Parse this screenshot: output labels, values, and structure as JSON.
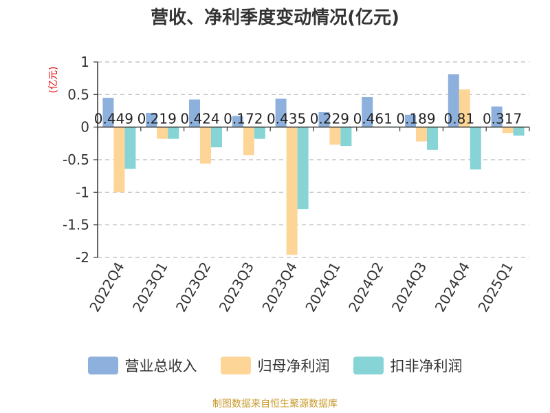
{
  "chart_data": {
    "type": "bar",
    "title": "营收、净利季度变动情况(亿元)",
    "ylabel": "(亿元)",
    "ylim": [
      -2,
      1
    ],
    "yticks": [
      1,
      0.5,
      0,
      -0.5,
      -1,
      -1.5,
      -2
    ],
    "ytick_labels": [
      "1",
      "0.5",
      "0",
      "-0.5",
      "-1",
      "-1.5",
      "-2"
    ],
    "grid": true,
    "categories": [
      "2022Q4",
      "2023Q1",
      "2023Q2",
      "2023Q3",
      "2023Q4",
      "2024Q1",
      "2024Q2",
      "2024Q3",
      "2024Q4",
      "2025Q1"
    ],
    "series": [
      {
        "name": "营业总收入",
        "color": "#8eb0dc",
        "values": [
          0.449,
          0.219,
          0.424,
          0.172,
          0.435,
          0.229,
          0.461,
          0.189,
          0.81,
          0.317
        ],
        "labels": [
          "0.449",
          "0.219",
          "0.424",
          "0.172",
          "0.435",
          "0.229",
          "0.461",
          "0.189",
          "0.81",
          "0.317"
        ]
      },
      {
        "name": "归母净利润",
        "color": "#fdd697",
        "values": [
          -1.0,
          -0.18,
          -0.56,
          -0.43,
          -1.96,
          -0.27,
          0.01,
          -0.22,
          0.58,
          -0.09
        ]
      },
      {
        "name": "扣非净利润",
        "color": "#86d4d6",
        "values": [
          -0.64,
          -0.18,
          -0.31,
          -0.18,
          -1.26,
          -0.29,
          0.01,
          -0.35,
          -0.65,
          -0.13
        ]
      }
    ],
    "legend_position": "bottom"
  },
  "source_text": "制图数据来自恒生聚源数据库"
}
